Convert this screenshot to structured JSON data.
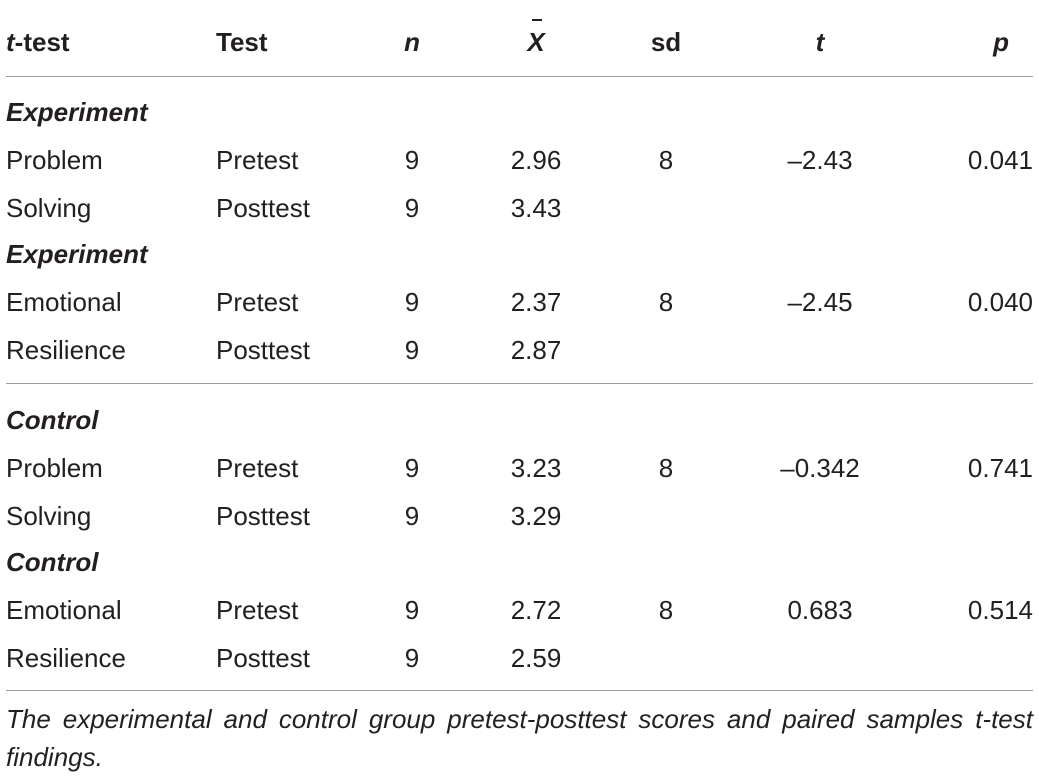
{
  "header": {
    "ttest_prefix": "t",
    "ttest_suffix": "-test",
    "test": "Test",
    "n": "n",
    "mean": "X",
    "sd": "sd",
    "t": "t",
    "p": "p"
  },
  "sections": [
    {
      "label": "Experiment",
      "rows": [
        {
          "ttest": "Problem",
          "test": "Pretest",
          "n": "9",
          "mean": "2.96",
          "sd": "8",
          "t": "–2.43",
          "p": "0.041"
        },
        {
          "ttest": "Solving",
          "test": "Posttest",
          "n": "9",
          "mean": "3.43",
          "sd": "",
          "t": "",
          "p": ""
        }
      ]
    },
    {
      "label": "Experiment",
      "rows": [
        {
          "ttest": "Emotional",
          "test": "Pretest",
          "n": "9",
          "mean": "2.37",
          "sd": "8",
          "t": "–2.45",
          "p": "0.040"
        },
        {
          "ttest": "Resilience",
          "test": "Posttest",
          "n": "9",
          "mean": "2.87",
          "sd": "",
          "t": "",
          "p": ""
        }
      ]
    },
    {
      "label": "Control",
      "rows": [
        {
          "ttest": "Problem",
          "test": "Pretest",
          "n": "9",
          "mean": "3.23",
          "sd": "8",
          "t": "–0.342",
          "p": "0.741"
        },
        {
          "ttest": "Solving",
          "test": "Posttest",
          "n": "9",
          "mean": "3.29",
          "sd": "",
          "t": "",
          "p": ""
        }
      ]
    },
    {
      "label": "Control",
      "rows": [
        {
          "ttest": "Emotional",
          "test": "Pretest",
          "n": "9",
          "mean": "2.72",
          "sd": "8",
          "t": "0.683",
          "p": "0.514"
        },
        {
          "ttest": "Resilience",
          "test": "Posttest",
          "n": "9",
          "mean": "2.59",
          "sd": "",
          "t": "",
          "p": ""
        }
      ]
    }
  ],
  "caption": "The experimental and control group pretest-posttest scores and paired samples t-test findings."
}
